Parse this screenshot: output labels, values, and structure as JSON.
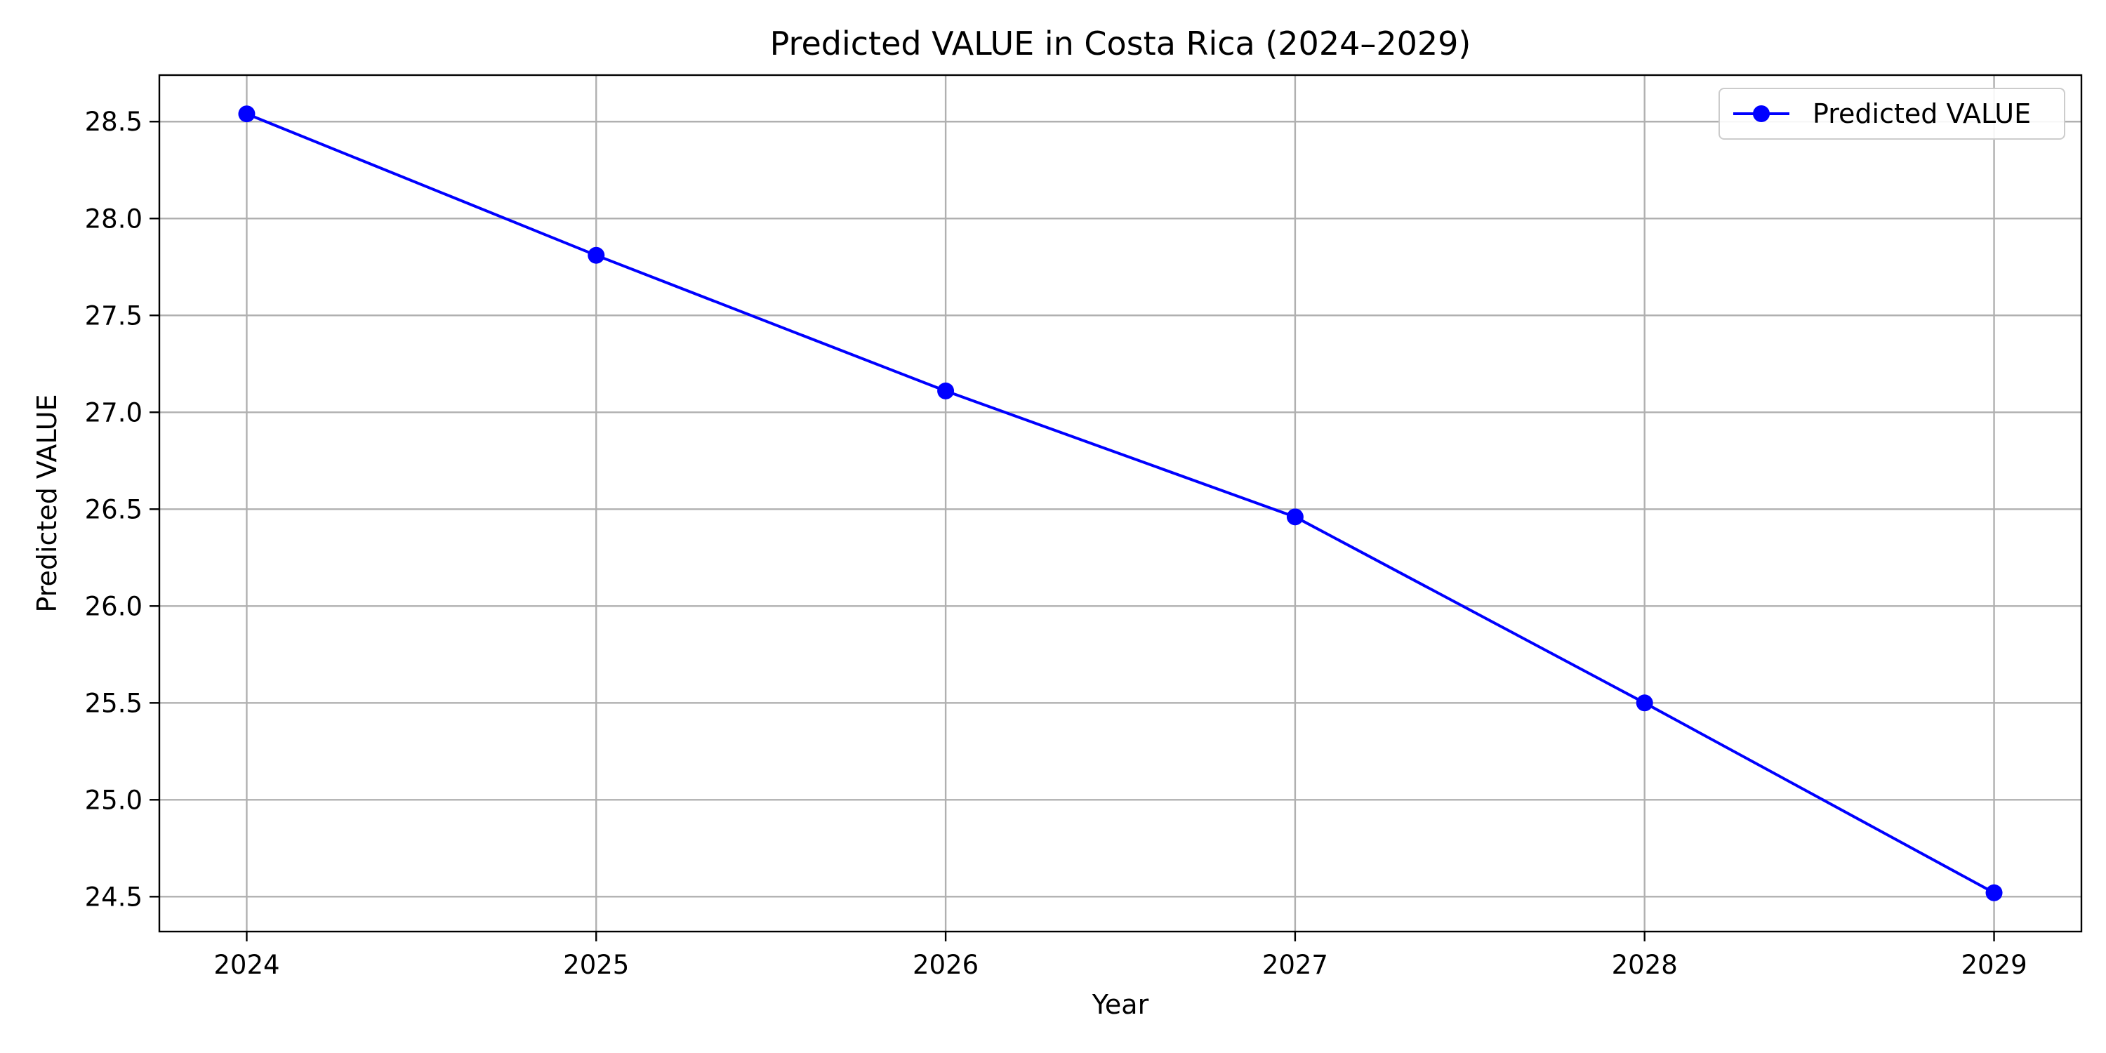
{
  "chart_data": {
    "type": "line",
    "title": "Predicted VALUE in Costa Rica (2024–2029)",
    "xlabel": "Year",
    "ylabel": "Predicted VALUE",
    "x": [
      2024,
      2025,
      2026,
      2027,
      2028,
      2029
    ],
    "x_tick_labels": [
      "2024",
      "2025",
      "2026",
      "2027",
      "2028",
      "2029"
    ],
    "y_ticks": [
      24.5,
      25.0,
      25.5,
      26.0,
      26.5,
      27.0,
      27.5,
      28.0,
      28.5
    ],
    "y_tick_labels": [
      "24.5",
      "25.0",
      "25.5",
      "26.0",
      "26.5",
      "27.0",
      "27.5",
      "28.0",
      "28.5"
    ],
    "xlim": [
      2023.75,
      2029.25
    ],
    "ylim": [
      24.32,
      28.74
    ],
    "grid": true,
    "legend_position": "top-right",
    "series": [
      {
        "name": "Predicted VALUE",
        "color": "#0000ff",
        "marker": "circle",
        "values": [
          28.54,
          27.81,
          27.11,
          26.46,
          25.5,
          24.52
        ]
      }
    ]
  }
}
